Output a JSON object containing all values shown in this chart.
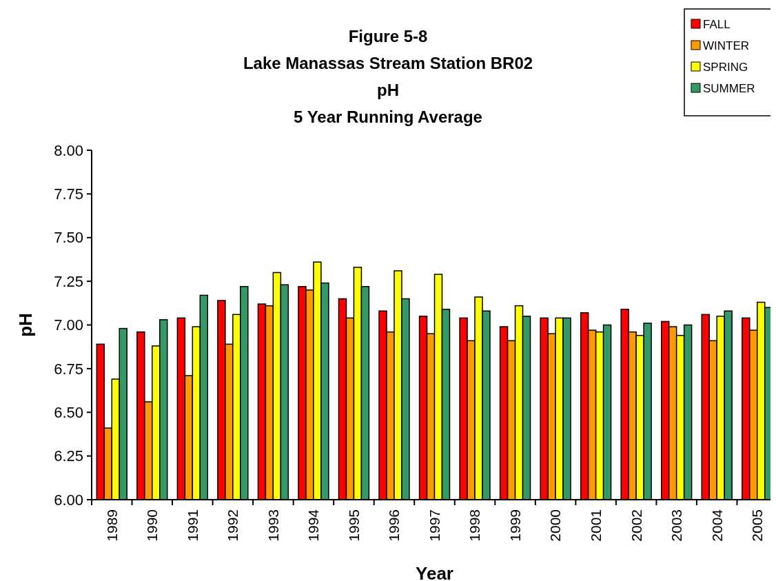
{
  "chart_data": {
    "type": "bar",
    "title": "Figure 5-8\nLake Manassas Stream Station BR02\npH\n5 Year Running Average",
    "xlabel": "Year",
    "ylabel": "pH",
    "categories": [
      "1989",
      "1990",
      "1991",
      "1992",
      "1993",
      "1994",
      "1995",
      "1996",
      "1997",
      "1998",
      "1999",
      "2000",
      "2001",
      "2002",
      "2003",
      "2004",
      "2005"
    ],
    "series": [
      {
        "name": "FALL",
        "color": "#ff0000",
        "values": [
          6.89,
          6.96,
          7.04,
          7.14,
          7.12,
          7.22,
          7.15,
          7.08,
          7.05,
          7.04,
          6.99,
          7.04,
          7.07,
          7.09,
          7.02,
          7.06,
          7.04
        ]
      },
      {
        "name": "WINTER",
        "color": "#ff9900",
        "values": [
          6.41,
          6.56,
          6.71,
          6.89,
          7.11,
          7.2,
          7.04,
          6.96,
          6.95,
          6.91,
          6.91,
          6.95,
          6.97,
          6.96,
          6.99,
          6.91,
          6.97
        ]
      },
      {
        "name": "SPRING",
        "color": "#ffff00",
        "values": [
          6.69,
          6.88,
          6.99,
          7.06,
          7.3,
          7.36,
          7.33,
          7.31,
          7.29,
          7.16,
          7.11,
          7.04,
          6.96,
          6.94,
          6.94,
          7.05,
          7.13
        ]
      },
      {
        "name": "SUMMER",
        "color": "#339966",
        "values": [
          6.98,
          7.03,
          7.17,
          7.22,
          7.23,
          7.24,
          7.22,
          7.15,
          7.09,
          7.08,
          7.05,
          7.04,
          7.0,
          7.01,
          7.0,
          7.08,
          7.1
        ]
      }
    ],
    "ylim": [
      6,
      8
    ],
    "yticks": [
      {
        "value": 6,
        "label": "6.00"
      },
      {
        "value": 6.25,
        "label": "6.25"
      },
      {
        "value": 6.5,
        "label": "6.50"
      },
      {
        "value": 6.75,
        "label": "6.75"
      },
      {
        "value": 7,
        "label": "7.00"
      },
      {
        "value": 7.25,
        "label": "7.25"
      },
      {
        "value": 7.5,
        "label": "7.50"
      },
      {
        "value": 7.75,
        "label": "7.75"
      },
      {
        "value": 8,
        "label": "8.00"
      }
    ],
    "grid": false,
    "legend": "top right"
  }
}
